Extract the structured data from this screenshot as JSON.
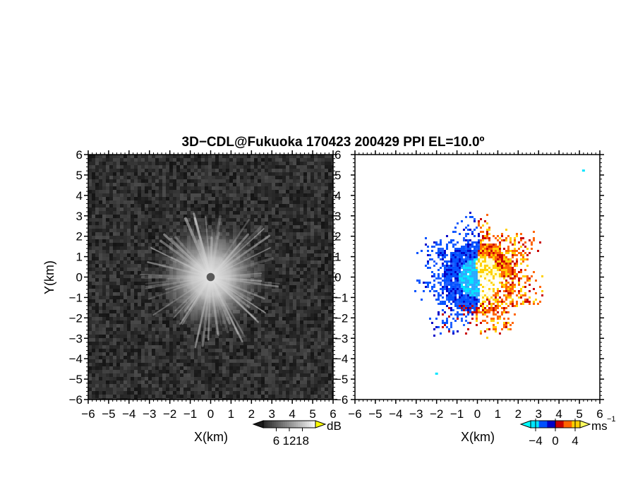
{
  "title": "3D−CDL@Fukuoka 170423 200429 PPI EL=10.0º",
  "chart_data": [
    {
      "panel": "left",
      "type": "heatmap",
      "field": "backscatter intensity (grayscale)",
      "xlabel": "X(km)",
      "ylabel": "Y(km)",
      "xlim": [
        -6,
        6
      ],
      "ylim": [
        -6,
        6
      ],
      "x_ticks": [
        -6,
        -5,
        -4,
        -3,
        -2,
        -1,
        0,
        1,
        2,
        3,
        4,
        5,
        6
      ],
      "y_ticks": [
        -6,
        -5,
        -4,
        -3,
        -2,
        -1,
        0,
        1,
        2,
        3,
        4,
        5,
        6
      ],
      "tick_labels": [
        "−6",
        "−5",
        "−4",
        "−3",
        "−2",
        "−1",
        "0",
        "1",
        "2",
        "3",
        "4",
        "5",
        "6"
      ],
      "colorbar": {
        "unit": "dB",
        "ticks": [
          6,
          12,
          18
        ],
        "tick_labels": [
          "6",
          "12",
          "18"
        ],
        "range": [
          0,
          24
        ],
        "colormap": "gray"
      },
      "features": {
        "bright_core_center_km": [
          0,
          0
        ],
        "bright_core_radius_km": 2.7,
        "radial_streaks": true,
        "blind_spot_radius_km": 0.2
      }
    },
    {
      "panel": "right",
      "type": "heatmap",
      "field": "radial velocity",
      "xlabel": "X(km)",
      "ylabel": "",
      "xlim": [
        -6,
        6
      ],
      "ylim": [
        -6,
        6
      ],
      "x_ticks": [
        -6,
        -5,
        -4,
        -3,
        -2,
        -1,
        0,
        1,
        2,
        3,
        4,
        5,
        6
      ],
      "y_ticks": [
        -6,
        -5,
        -4,
        -3,
        -2,
        -1,
        0,
        1,
        2,
        3,
        4,
        5,
        6
      ],
      "tick_labels": [
        "−6",
        "−5",
        "−4",
        "−3",
        "−2",
        "−1",
        "0",
        "1",
        "2",
        "3",
        "4",
        "5",
        "6"
      ],
      "colorbar": {
        "unit": "ms",
        "unit_sup": "−1",
        "ticks": [
          -4,
          0,
          4
        ],
        "tick_labels": [
          "−4",
          "0",
          "4"
        ],
        "range": [
          -5,
          5
        ],
        "colors": [
          "#00e5ff",
          "#0050ff",
          "#0000c8",
          "#c80000",
          "#ff6400",
          "#ffd000"
        ]
      },
      "features": {
        "negative_sector": "west half (blue/cyan)",
        "positive_sector": "east half (red/orange/yellow)",
        "data_radius_km": 3.2
      }
    }
  ]
}
